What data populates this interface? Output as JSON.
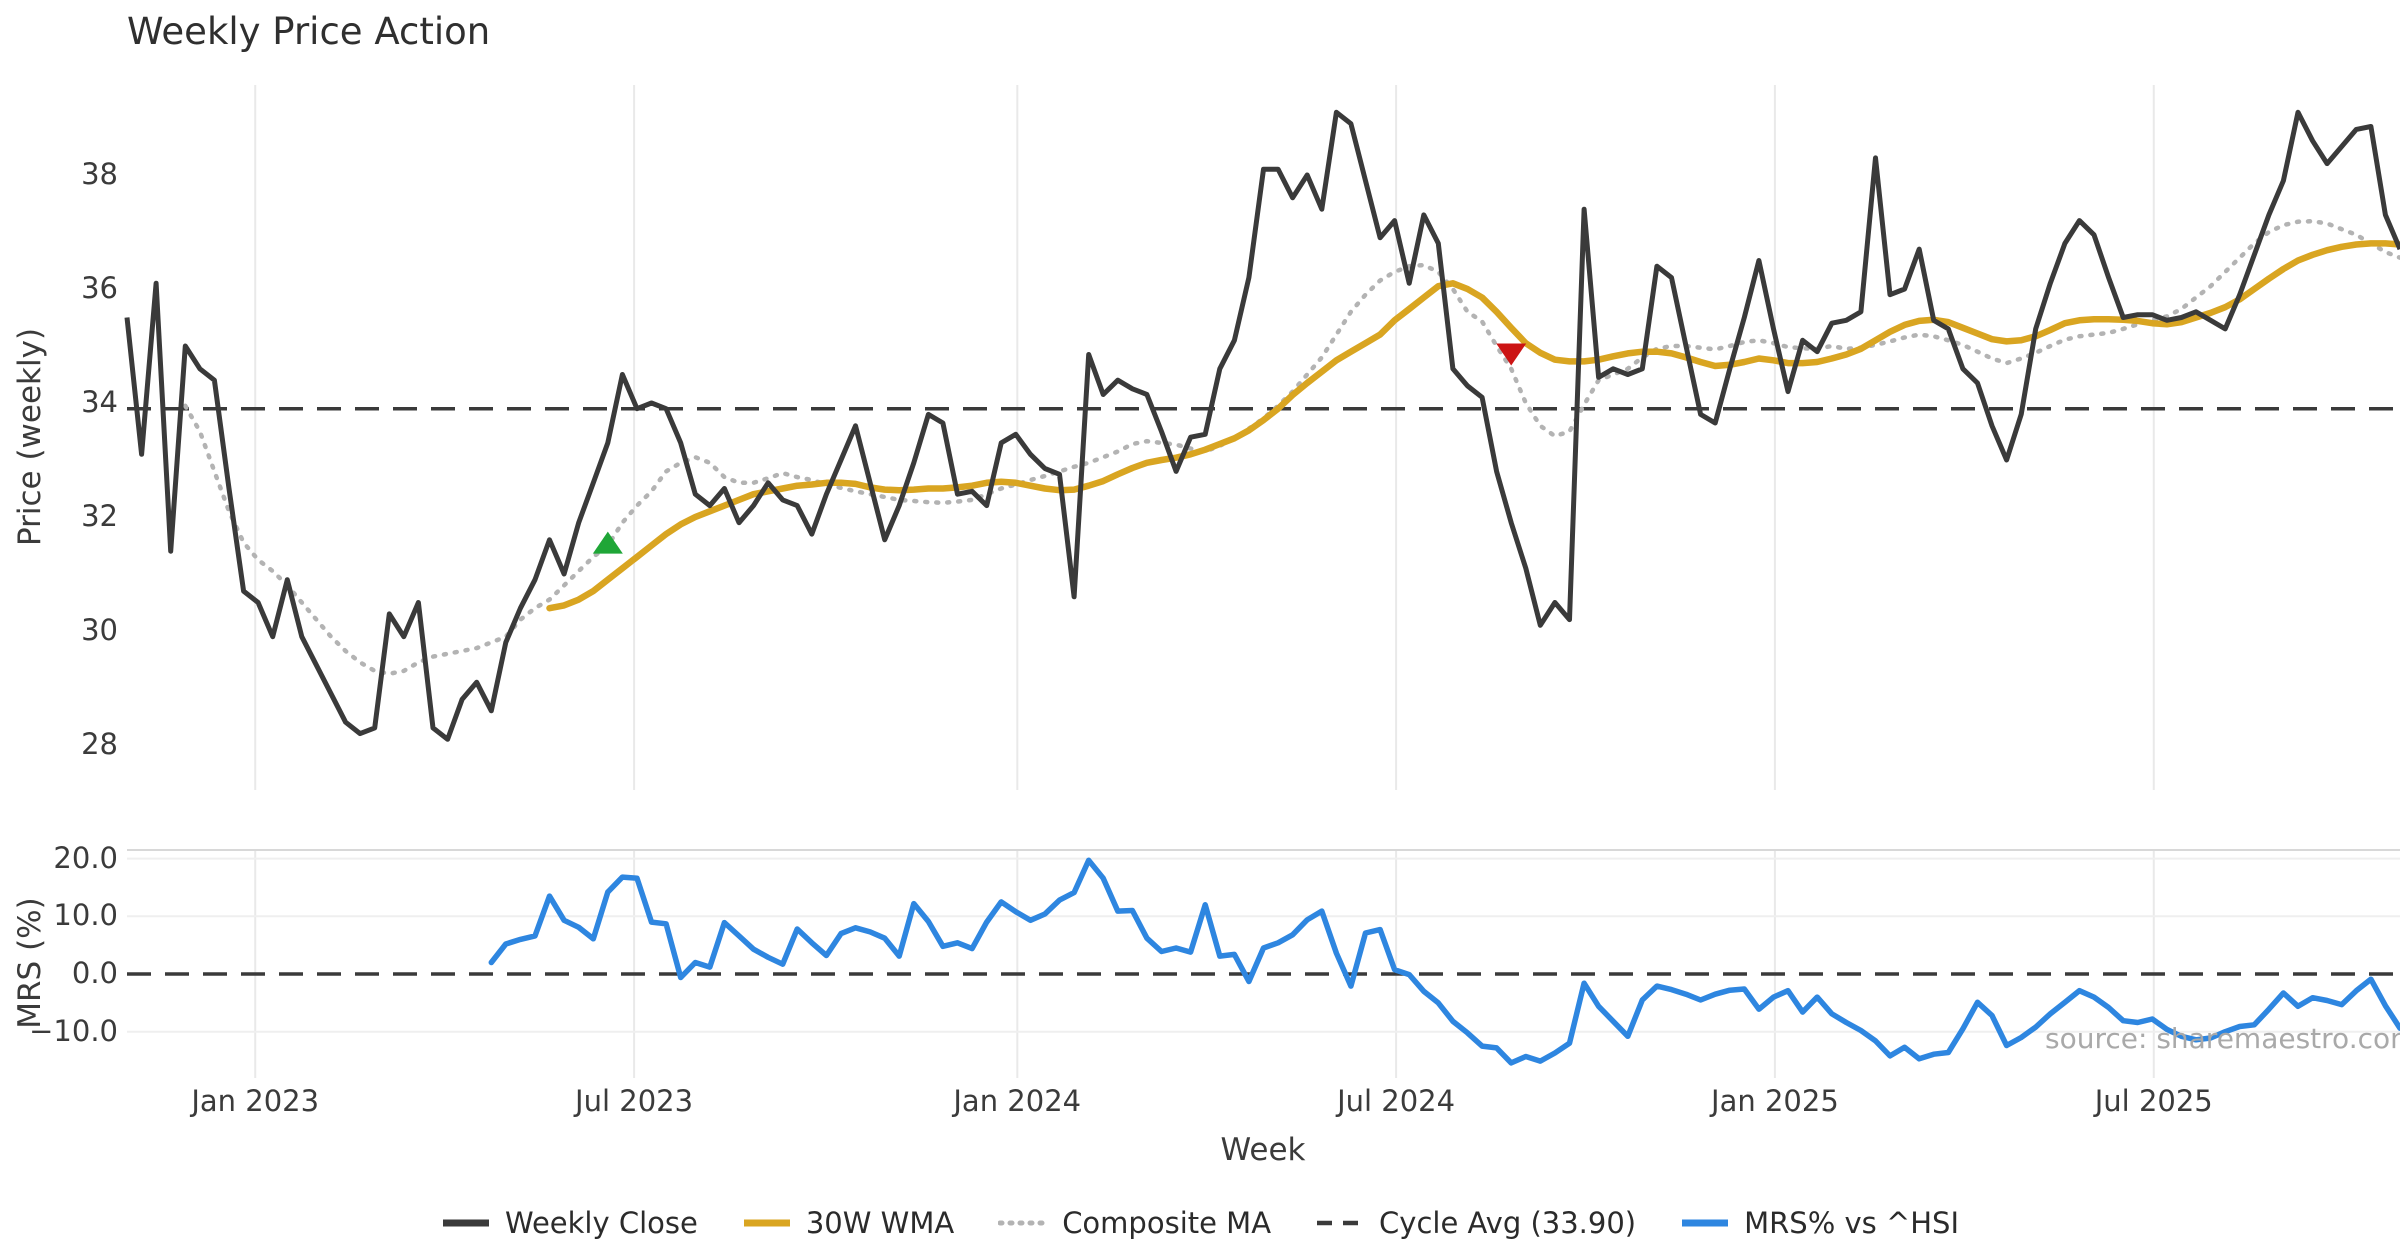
{
  "title": "Weekly Price Action",
  "main_axis": {
    "ylabel": "Price (weekly)",
    "yticks": [
      38,
      36,
      34,
      32,
      30,
      28
    ],
    "ylim": [
      27.2,
      39.6
    ]
  },
  "lower_axis": {
    "ylabel": "MRS (%)",
    "yticks": [
      "20.0",
      "10.0",
      "0.0",
      "−10.0"
    ],
    "ytick_values": [
      20,
      10,
      0,
      -10
    ],
    "ylim": [
      -17.5,
      21.5
    ]
  },
  "xlabel": "Week",
  "x_ticks": [
    {
      "label": "Jan 2023",
      "i": 8.8
    },
    {
      "label": "Jul 2023",
      "i": 34.8
    },
    {
      "label": "Jan 2024",
      "i": 61.1
    },
    {
      "label": "Jul 2024",
      "i": 87.1
    },
    {
      "label": "Jan 2025",
      "i": 113.1
    },
    {
      "label": "Jul 2025",
      "i": 139.1
    }
  ],
  "source_note": "source: sharemaestro.com",
  "colors": {
    "close": "#3a3a3a",
    "wma30": "#d9a521",
    "composite": "#b3b3b3",
    "cycle_avg": "#3a3a3a",
    "mrs": "#2e86e0",
    "buy_marker": "#1fa637",
    "sell_marker": "#cc1414",
    "grid": "#e9e9e9",
    "panel_border": "#d8d8d8",
    "text": "#3b3b3b"
  },
  "legend": {
    "items": [
      {
        "label": "Weekly Close",
        "style": "solid-dark"
      },
      {
        "label": "30W WMA",
        "style": "solid-gold"
      },
      {
        "label": "Composite MA",
        "style": "dotted-gray"
      },
      {
        "label": "Cycle Avg (33.90)",
        "style": "dashed-dark"
      },
      {
        "label": "MRS% vs ^HSI",
        "style": "solid-blue"
      }
    ]
  },
  "chart_data": {
    "type": "line",
    "x_unit": "week",
    "n_points": 157,
    "x_range_note": "weekly points from Nov 2022 to Nov 2025",
    "cycle_avg": 33.9,
    "series": [
      {
        "name": "Weekly Close",
        "panel": "main",
        "values": [
          35.5,
          33.1,
          36.1,
          31.4,
          35.0,
          34.6,
          34.4,
          32.5,
          30.7,
          30.5,
          29.9,
          30.9,
          29.9,
          29.4,
          28.9,
          28.4,
          28.2,
          28.3,
          30.3,
          29.9,
          30.5,
          28.3,
          28.1,
          28.8,
          29.1,
          28.6,
          29.8,
          30.4,
          30.9,
          31.6,
          31.0,
          31.9,
          32.6,
          33.3,
          34.5,
          33.9,
          34.0,
          33.9,
          33.3,
          32.4,
          32.2,
          32.5,
          31.9,
          32.2,
          32.6,
          32.3,
          32.2,
          31.7,
          32.4,
          33.0,
          33.6,
          32.6,
          31.6,
          32.2,
          32.95,
          33.8,
          33.65,
          32.4,
          32.45,
          32.2,
          33.3,
          33.45,
          33.1,
          32.85,
          32.75,
          30.6,
          34.85,
          34.15,
          34.4,
          34.25,
          34.15,
          33.5,
          32.8,
          33.4,
          33.45,
          34.6,
          35.1,
          36.2,
          38.1,
          38.1,
          37.6,
          38.0,
          37.4,
          39.1,
          38.9,
          37.9,
          36.9,
          37.2,
          36.1,
          37.3,
          36.8,
          34.6,
          34.3,
          34.1,
          32.8,
          31.9,
          31.1,
          30.1,
          30.5,
          30.2,
          37.4,
          34.45,
          34.6,
          34.5,
          34.6,
          36.4,
          36.2,
          35.0,
          33.8,
          33.65,
          34.6,
          35.5,
          36.5,
          35.3,
          34.2,
          35.1,
          34.9,
          35.4,
          35.45,
          35.6,
          38.3,
          35.9,
          36.0,
          36.7,
          35.45,
          35.3,
          34.6,
          34.35,
          33.6,
          33.0,
          33.8,
          35.3,
          36.1,
          36.8,
          37.2,
          36.95,
          36.2,
          35.5,
          35.55,
          35.55,
          35.45,
          35.5,
          35.6,
          35.45,
          35.3,
          35.9,
          36.6,
          37.3,
          37.9,
          39.1,
          38.6,
          38.2,
          38.5,
          38.8,
          38.85,
          37.3,
          36.7
        ]
      },
      {
        "name": "30W WMA",
        "panel": "main",
        "values": [
          null,
          null,
          null,
          null,
          null,
          null,
          null,
          null,
          null,
          null,
          null,
          null,
          null,
          null,
          null,
          null,
          null,
          null,
          null,
          null,
          null,
          null,
          null,
          null,
          null,
          null,
          null,
          null,
          null,
          30.4,
          30.45,
          30.55,
          30.7,
          30.9,
          31.1,
          31.3,
          31.5,
          31.7,
          31.87,
          32.0,
          32.1,
          32.2,
          32.3,
          32.4,
          32.45,
          32.5,
          32.55,
          32.57,
          32.6,
          32.6,
          32.58,
          32.52,
          32.48,
          32.47,
          32.48,
          32.5,
          32.5,
          32.52,
          32.55,
          32.6,
          32.62,
          32.6,
          32.55,
          32.5,
          32.47,
          32.48,
          32.55,
          32.63,
          32.75,
          32.86,
          32.95,
          33.0,
          33.04,
          33.1,
          33.18,
          33.28,
          33.38,
          33.52,
          33.7,
          33.9,
          34.14,
          34.35,
          34.55,
          34.75,
          34.9,
          35.05,
          35.2,
          35.45,
          35.65,
          35.85,
          36.05,
          36.1,
          36.0,
          35.85,
          35.6,
          35.32,
          35.05,
          34.88,
          34.76,
          34.73,
          34.73,
          34.76,
          34.82,
          34.87,
          34.9,
          34.9,
          34.87,
          34.8,
          34.72,
          34.65,
          34.67,
          34.72,
          34.78,
          34.75,
          34.7,
          34.7,
          34.72,
          34.78,
          34.85,
          34.95,
          35.1,
          35.25,
          35.37,
          35.44,
          35.46,
          35.42,
          35.32,
          35.22,
          35.12,
          35.08,
          35.1,
          35.17,
          35.28,
          35.4,
          35.45,
          35.47,
          35.47,
          35.46,
          35.44,
          35.4,
          35.38,
          35.42,
          35.5,
          35.58,
          35.68,
          35.82,
          36.0,
          36.18,
          36.35,
          36.5,
          36.6,
          36.68,
          36.74,
          36.78,
          36.8,
          36.8,
          36.78
        ]
      },
      {
        "name": "Composite MA",
        "panel": "main",
        "values": [
          null,
          null,
          null,
          null,
          33.95,
          33.5,
          32.8,
          32.1,
          31.55,
          31.25,
          31.05,
          30.8,
          30.5,
          30.2,
          29.9,
          29.65,
          29.45,
          29.3,
          29.25,
          29.3,
          29.45,
          29.55,
          29.6,
          29.65,
          29.7,
          29.8,
          29.9,
          30.2,
          30.4,
          30.55,
          30.8,
          31.05,
          31.3,
          31.5,
          31.9,
          32.2,
          32.45,
          32.8,
          32.95,
          33.05,
          32.95,
          32.7,
          32.6,
          32.6,
          32.68,
          32.77,
          32.7,
          32.65,
          32.57,
          32.51,
          32.45,
          32.4,
          32.35,
          32.3,
          32.28,
          32.26,
          32.25,
          32.27,
          32.3,
          32.4,
          32.5,
          32.57,
          32.65,
          32.72,
          32.8,
          32.88,
          32.95,
          33.05,
          33.15,
          33.28,
          33.33,
          33.3,
          33.27,
          33.2,
          33.15,
          33.25,
          33.38,
          33.55,
          33.73,
          33.95,
          34.2,
          34.5,
          34.8,
          35.2,
          35.6,
          35.9,
          36.15,
          36.3,
          36.4,
          36.42,
          36.3,
          36.0,
          35.6,
          35.43,
          35.0,
          34.6,
          34.0,
          33.6,
          33.42,
          33.5,
          33.97,
          34.4,
          34.5,
          34.6,
          34.8,
          34.95,
          35.0,
          35.0,
          34.97,
          34.94,
          35.0,
          35.07,
          35.1,
          35.05,
          34.98,
          34.96,
          34.95,
          35.0,
          34.95,
          34.97,
          35.02,
          35.08,
          35.15,
          35.2,
          35.17,
          35.1,
          35.02,
          34.9,
          34.78,
          34.7,
          34.78,
          34.88,
          35.0,
          35.11,
          35.17,
          35.2,
          35.23,
          35.3,
          35.38,
          35.46,
          35.52,
          35.65,
          35.85,
          36.05,
          36.3,
          36.55,
          36.8,
          37.0,
          37.12,
          37.18,
          37.19,
          37.15,
          37.05,
          36.95,
          36.8,
          36.65,
          36.55
        ]
      },
      {
        "name": "MRS% vs ^HSI",
        "panel": "lower",
        "values": [
          null,
          null,
          null,
          null,
          null,
          null,
          null,
          null,
          null,
          null,
          null,
          null,
          null,
          null,
          null,
          null,
          null,
          null,
          null,
          null,
          null,
          null,
          null,
          null,
          null,
          2.0,
          5.2,
          6.0,
          6.6,
          13.5,
          9.3,
          8.1,
          6.1,
          14.2,
          16.8,
          16.6,
          9.0,
          8.7,
          -0.6,
          2.0,
          1.2,
          8.9,
          6.6,
          4.3,
          2.9,
          1.7,
          7.8,
          5.4,
          3.2,
          7.0,
          8.0,
          7.3,
          6.2,
          3.1,
          12.2,
          9.1,
          4.8,
          5.4,
          4.4,
          9.0,
          12.5,
          10.8,
          9.3,
          10.4,
          12.8,
          14.1,
          19.7,
          16.6,
          10.9,
          11.0,
          6.2,
          3.9,
          4.5,
          3.8,
          12.0,
          3.1,
          3.4,
          -1.3,
          4.5,
          5.4,
          6.8,
          9.4,
          10.9,
          3.6,
          -2.1,
          7.1,
          7.7,
          0.75,
          -0.1,
          -3.0,
          -5.0,
          -8.2,
          -10.2,
          -12.5,
          -12.8,
          -15.4,
          -14.3,
          -15.1,
          -13.7,
          -12.0,
          -1.6,
          -5.6,
          -8.2,
          -10.8,
          -4.5,
          -2.1,
          -2.7,
          -3.5,
          -4.5,
          -3.5,
          -2.8,
          -2.6,
          -6.1,
          -4.0,
          -2.9,
          -6.6,
          -4.0,
          -6.9,
          -8.4,
          -9.8,
          -11.6,
          -14.2,
          -12.7,
          -14.7,
          -13.9,
          -13.6,
          -9.5,
          -4.9,
          -7.2,
          -12.4,
          -11.0,
          -9.2,
          -6.9,
          -4.9,
          -2.9,
          -4.0,
          -5.8,
          -8.1,
          -8.4,
          -7.8,
          -9.6,
          -10.8,
          -11.4,
          -11.1,
          -10.0,
          -9.1,
          -8.8,
          -6.1,
          -3.3,
          -5.6,
          -4.1,
          -4.6,
          -5.3,
          -2.9,
          -0.9,
          -5.5,
          -9.4
        ]
      }
    ],
    "markers": [
      {
        "type": "buy-triangle-up",
        "i": 33,
        "value": 31.55
      },
      {
        "type": "sell-triangle-down",
        "i": 95,
        "value": 34.85
      }
    ],
    "legend_position": "bottom-center",
    "grid": "vertical-date-gridlines"
  }
}
